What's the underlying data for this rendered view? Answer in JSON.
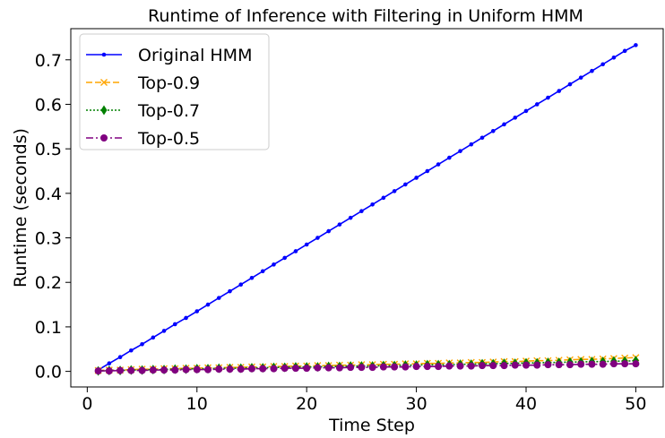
{
  "chart_data": {
    "type": "line",
    "title": "Runtime of Inference with Filtering in Uniform HMM",
    "xlabel": "Time Step",
    "ylabel": "Runtime (seconds)",
    "xlim": [
      -1.5,
      52.5
    ],
    "ylim": [
      -0.035,
      0.77
    ],
    "xticks": [
      0,
      10,
      20,
      30,
      40,
      50
    ],
    "xtick_labels": [
      "0",
      "10",
      "20",
      "30",
      "40",
      "50"
    ],
    "yticks": [
      0.0,
      0.1,
      0.2,
      0.3,
      0.4,
      0.5,
      0.6,
      0.7
    ],
    "ytick_labels": [
      "0.0",
      "0.1",
      "0.2",
      "0.3",
      "0.4",
      "0.5",
      "0.6",
      "0.7"
    ],
    "grid": false,
    "legend_position": "top-left",
    "x": [
      1,
      2,
      3,
      4,
      5,
      6,
      7,
      8,
      9,
      10,
      11,
      12,
      13,
      14,
      15,
      16,
      17,
      18,
      19,
      20,
      21,
      22,
      23,
      24,
      25,
      26,
      27,
      28,
      29,
      30,
      31,
      32,
      33,
      34,
      35,
      36,
      37,
      38,
      39,
      40,
      41,
      42,
      43,
      44,
      45,
      46,
      47,
      48,
      49,
      50
    ],
    "series": [
      {
        "name": "Original HMM",
        "color": "#0000ff",
        "marker": "dot",
        "dash": "solid",
        "values": [
          0.003,
          0.018,
          0.032,
          0.047,
          0.061,
          0.076,
          0.091,
          0.106,
          0.12,
          0.135,
          0.15,
          0.165,
          0.18,
          0.195,
          0.21,
          0.225,
          0.24,
          0.255,
          0.27,
          0.285,
          0.3,
          0.315,
          0.33,
          0.345,
          0.36,
          0.375,
          0.39,
          0.405,
          0.42,
          0.435,
          0.45,
          0.465,
          0.48,
          0.495,
          0.51,
          0.525,
          0.54,
          0.555,
          0.57,
          0.585,
          0.6,
          0.615,
          0.63,
          0.645,
          0.66,
          0.675,
          0.69,
          0.705,
          0.72,
          0.733
        ]
      },
      {
        "name": "Top-0.9",
        "color": "#ffa500",
        "marker": "x",
        "dash": "dashed",
        "values": [
          0.002,
          0.003,
          0.003,
          0.004,
          0.005,
          0.005,
          0.006,
          0.006,
          0.007,
          0.007,
          0.008,
          0.008,
          0.009,
          0.009,
          0.01,
          0.01,
          0.011,
          0.011,
          0.012,
          0.012,
          0.013,
          0.013,
          0.014,
          0.014,
          0.015,
          0.015,
          0.016,
          0.016,
          0.017,
          0.017,
          0.018,
          0.018,
          0.019,
          0.019,
          0.02,
          0.02,
          0.021,
          0.022,
          0.022,
          0.023,
          0.024,
          0.024,
          0.025,
          0.026,
          0.027,
          0.027,
          0.028,
          0.029,
          0.03,
          0.031
        ]
      },
      {
        "name": "Top-0.7",
        "color": "#008000",
        "marker": "diamond",
        "dash": "dotted",
        "values": [
          0.001,
          0.002,
          0.002,
          0.003,
          0.003,
          0.004,
          0.004,
          0.005,
          0.005,
          0.006,
          0.006,
          0.007,
          0.007,
          0.007,
          0.008,
          0.008,
          0.009,
          0.009,
          0.01,
          0.01,
          0.01,
          0.011,
          0.011,
          0.012,
          0.012,
          0.012,
          0.013,
          0.013,
          0.014,
          0.014,
          0.015,
          0.015,
          0.015,
          0.016,
          0.016,
          0.017,
          0.017,
          0.018,
          0.018,
          0.019,
          0.019,
          0.02,
          0.02,
          0.021,
          0.021,
          0.022,
          0.022,
          0.023,
          0.023,
          0.024
        ]
      },
      {
        "name": "Top-0.5",
        "color": "#800080",
        "marker": "circle",
        "dash": "dashdot",
        "values": [
          0.001,
          0.001,
          0.002,
          0.002,
          0.002,
          0.003,
          0.003,
          0.003,
          0.004,
          0.004,
          0.004,
          0.005,
          0.005,
          0.005,
          0.006,
          0.006,
          0.006,
          0.007,
          0.007,
          0.007,
          0.008,
          0.008,
          0.008,
          0.009,
          0.009,
          0.009,
          0.01,
          0.01,
          0.01,
          0.011,
          0.011,
          0.011,
          0.012,
          0.012,
          0.012,
          0.013,
          0.013,
          0.013,
          0.014,
          0.014,
          0.014,
          0.015,
          0.015,
          0.015,
          0.016,
          0.016,
          0.016,
          0.017,
          0.017,
          0.017
        ]
      }
    ]
  }
}
